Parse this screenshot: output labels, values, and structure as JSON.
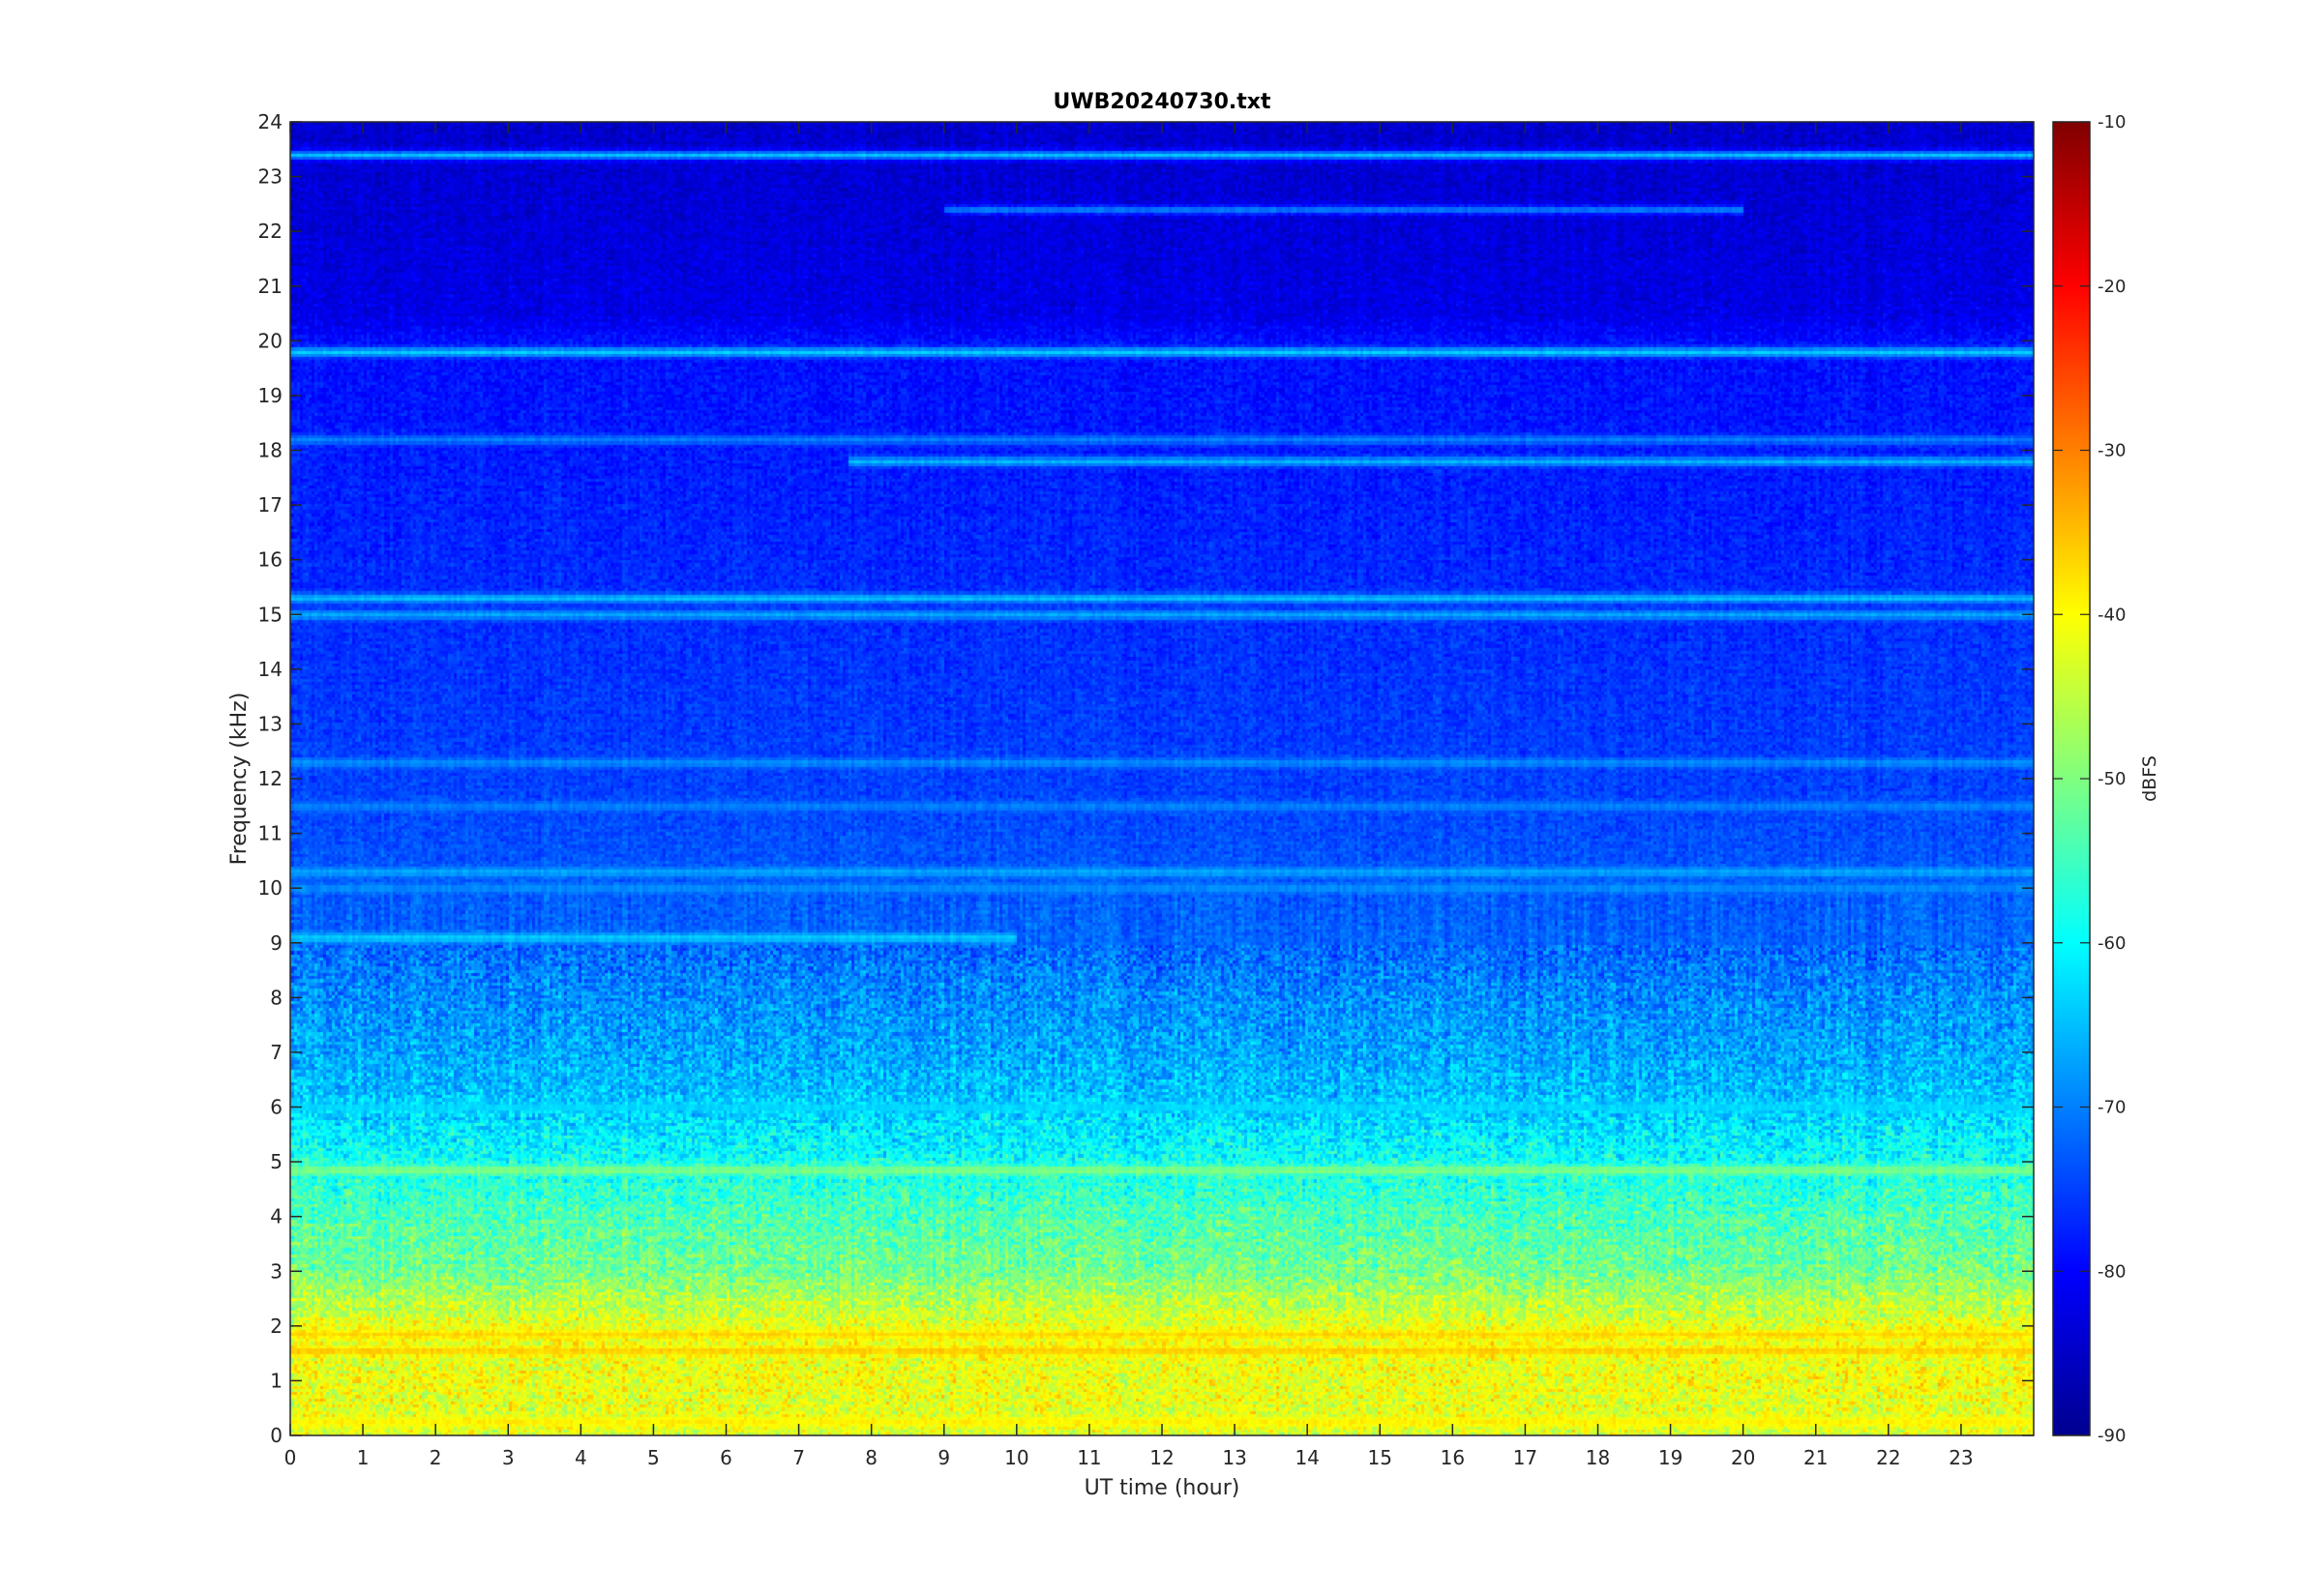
{
  "chart_data": {
    "type": "heatmap",
    "title": "UWB20240730.txt",
    "xlabel": "UT time (hour)",
    "ylabel": "Frequency (kHz)",
    "xlim": [
      0,
      24
    ],
    "ylim": [
      0,
      24
    ],
    "x_ticks": [
      "0",
      "1",
      "2",
      "3",
      "4",
      "5",
      "6",
      "7",
      "8",
      "9",
      "10",
      "11",
      "12",
      "13",
      "14",
      "15",
      "16",
      "17",
      "18",
      "19",
      "20",
      "21",
      "22",
      "23"
    ],
    "y_ticks": [
      "0",
      "1",
      "2",
      "3",
      "4",
      "5",
      "6",
      "7",
      "8",
      "9",
      "10",
      "11",
      "12",
      "13",
      "14",
      "15",
      "16",
      "17",
      "18",
      "19",
      "20",
      "21",
      "22",
      "23",
      "24"
    ],
    "colorbar": {
      "label": "dBFS",
      "range": [
        -90,
        -10
      ],
      "ticks": [
        "-90",
        "-80",
        "-70",
        "-60",
        "-50",
        "-40",
        "-30",
        "-20",
        "-10"
      ],
      "colormap": "jet"
    },
    "background_profile_dbfs": [
      {
        "f": 0,
        "v": -43
      },
      {
        "f": 1,
        "v": -41
      },
      {
        "f": 2,
        "v": -42
      },
      {
        "f": 2.5,
        "v": -46
      },
      {
        "f": 3,
        "v": -51
      },
      {
        "f": 4,
        "v": -54
      },
      {
        "f": 5,
        "v": -59
      },
      {
        "f": 6,
        "v": -64
      },
      {
        "f": 7,
        "v": -67
      },
      {
        "f": 8,
        "v": -69
      },
      {
        "f": 9,
        "v": -72
      },
      {
        "f": 12,
        "v": -75
      },
      {
        "f": 16,
        "v": -77
      },
      {
        "f": 20,
        "v": -79
      },
      {
        "f": 20.5,
        "v": -82
      },
      {
        "f": 24,
        "v": -84
      }
    ],
    "persistent_lines": [
      {
        "freq_khz": 19.8,
        "dbfs": -64,
        "from_hour": 0,
        "to_hour": 24
      },
      {
        "freq_khz": 18.2,
        "dbfs": -70,
        "from_hour": 0,
        "to_hour": 24
      },
      {
        "freq_khz": 17.8,
        "dbfs": -66,
        "from_hour": 7.7,
        "to_hour": 24
      },
      {
        "freq_khz": 23.4,
        "dbfs": -65,
        "from_hour": 0,
        "to_hour": 24
      },
      {
        "freq_khz": 22.4,
        "dbfs": -70,
        "from_hour": 9,
        "to_hour": 20
      },
      {
        "freq_khz": 15.3,
        "dbfs": -65,
        "from_hour": 0,
        "to_hour": 24
      },
      {
        "freq_khz": 15.0,
        "dbfs": -67,
        "from_hour": 0,
        "to_hour": 24
      },
      {
        "freq_khz": 12.3,
        "dbfs": -69,
        "from_hour": 0,
        "to_hour": 24
      },
      {
        "freq_khz": 11.5,
        "dbfs": -70,
        "from_hour": 0,
        "to_hour": 24
      },
      {
        "freq_khz": 10.3,
        "dbfs": -67,
        "from_hour": 0,
        "to_hour": 24
      },
      {
        "freq_khz": 10.0,
        "dbfs": -69,
        "from_hour": 0,
        "to_hour": 24
      },
      {
        "freq_khz": 9.1,
        "dbfs": -64,
        "from_hour": 0,
        "to_hour": 10
      },
      {
        "freq_khz": 6.0,
        "dbfs": -63,
        "from_hour": 0,
        "to_hour": 24
      },
      {
        "freq_khz": 4.85,
        "dbfs": -50,
        "from_hour": 0,
        "to_hour": 24
      },
      {
        "freq_khz": 1.85,
        "dbfs": -37,
        "from_hour": 0,
        "to_hour": 24
      },
      {
        "freq_khz": 1.55,
        "dbfs": -36,
        "from_hour": 0,
        "to_hour": 24
      },
      {
        "freq_khz": 0.25,
        "dbfs": -39,
        "from_hour": 0,
        "to_hour": 24
      }
    ]
  }
}
